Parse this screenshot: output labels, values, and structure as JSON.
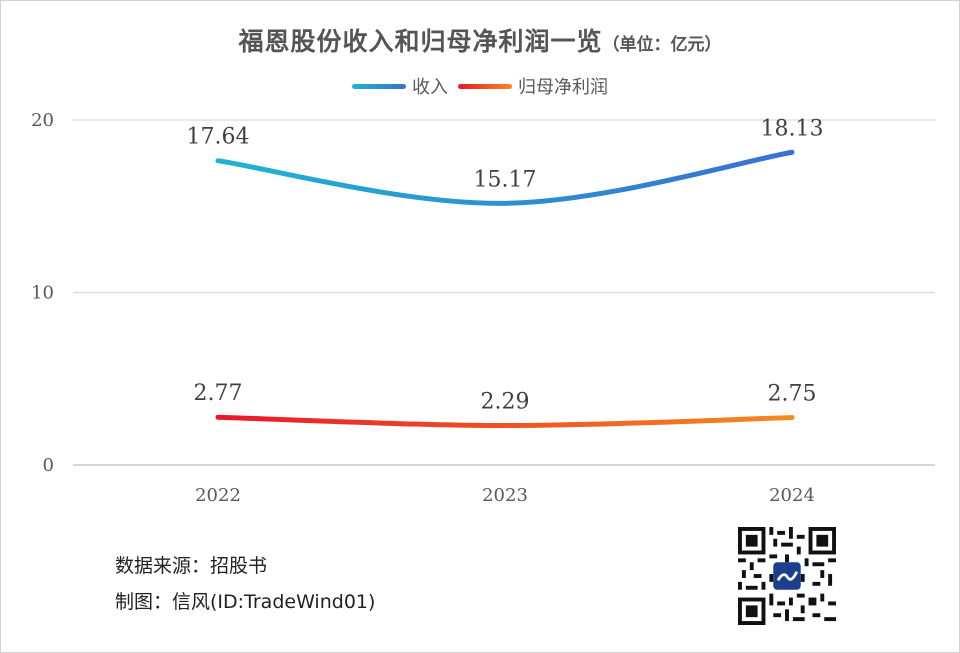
{
  "title": {
    "main": "福恩股份收入和归母净利润一览",
    "unit": "（单位：亿元）"
  },
  "legend": {
    "items": [
      "收入",
      "归母净利润"
    ]
  },
  "footer": {
    "source": "数据来源：招股书",
    "author": "制图：信风(ID:TradeWind01)"
  },
  "colors": {
    "revenue_start": "#1fb3d1",
    "revenue_end": "#3a6fd0",
    "profit_start": "#e8182a",
    "profit_end": "#f58a1f",
    "grid": "#d9d9d9",
    "axis_text": "#595959"
  },
  "chart_data": {
    "type": "line",
    "title": "福恩股份收入和归母净利润一览",
    "xlabel": "",
    "ylabel": "",
    "categories": [
      "2022",
      "2023",
      "2024"
    ],
    "ylim": [
      0,
      20
    ],
    "yticks": [
      0,
      10,
      20
    ],
    "grid": true,
    "smooth": true,
    "legend_position": "top-center",
    "series": [
      {
        "name": "收入",
        "values": [
          17.64,
          15.17,
          18.13
        ],
        "labels": [
          "17.64",
          "15.17",
          "18.13"
        ]
      },
      {
        "name": "归母净利润",
        "values": [
          2.77,
          2.29,
          2.75
        ],
        "labels": [
          "2.77",
          "2.29",
          "2.75"
        ]
      }
    ]
  }
}
